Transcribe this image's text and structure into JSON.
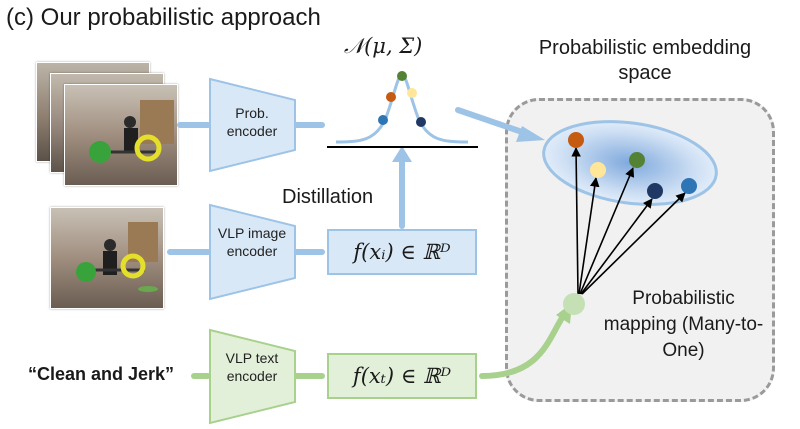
{
  "title": "(c) Our probabilistic approach",
  "embedding_space_label": "Probabilistic embedding space",
  "gaussian_label": "𝒩(μ, Σ)",
  "distillation_label": "Distillation",
  "mapping_label": "Probabilistic mapping (Many-to-One)",
  "text_query": "“Clean and Jerk”",
  "encoders": {
    "prob": "Prob. encoder",
    "vlp_image": "VLP image encoder",
    "vlp_text": "VLP text encoder"
  },
  "formulas": {
    "image": "f(xᵢ) ∈ ℝᴰ",
    "text": "f(xₜ) ∈ ℝᴰ"
  },
  "colors": {
    "blue_fill": "#d9e8f6",
    "blue_stroke": "#9dc3e6",
    "green_fill": "#e3f0d9",
    "green_stroke": "#a9d18e",
    "sample_orange": "#c55a11",
    "sample_yellow": "#ffe699",
    "sample_green": "#548235",
    "sample_navy": "#1f3864",
    "sample_blue": "#2e75b6"
  }
}
